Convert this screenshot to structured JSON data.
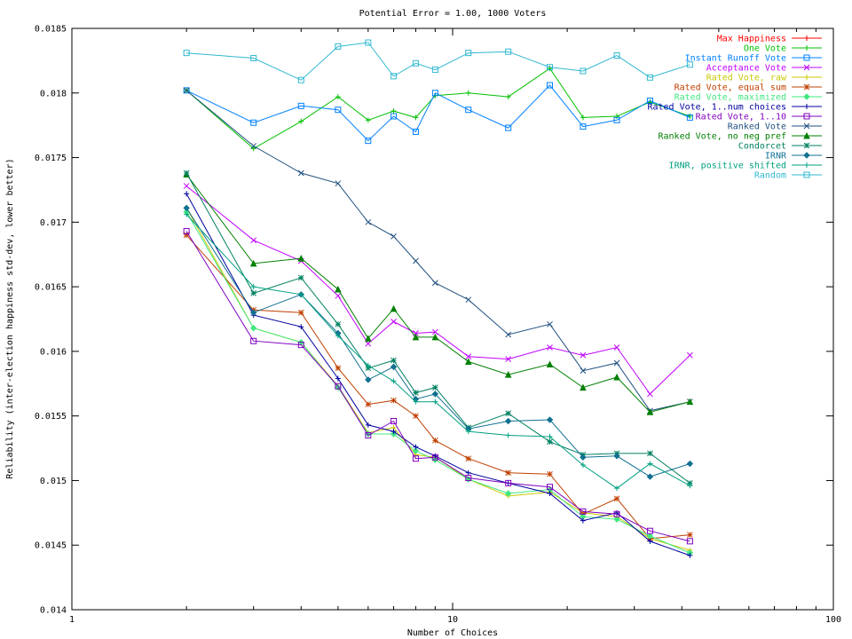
{
  "chart_data": {
    "type": "line",
    "title": "Potential Error = 1.00, 1000 Voters",
    "xlabel": "Number of Choices",
    "ylabel": "Reliability (inter-election happiness std-dev, lower better)",
    "xscale": "log",
    "xlim": [
      1,
      100
    ],
    "ylim": [
      0.014,
      0.0185
    ],
    "xticks": [
      {
        "value": 1,
        "label": "1"
      },
      {
        "value": 10,
        "label": "10"
      },
      {
        "value": 100,
        "label": "100"
      }
    ],
    "yticks": [
      {
        "value": 0.014,
        "label": "0.014"
      },
      {
        "value": 0.0145,
        "label": "0.0145"
      },
      {
        "value": 0.015,
        "label": "0.015"
      },
      {
        "value": 0.0155,
        "label": "0.0155"
      },
      {
        "value": 0.016,
        "label": "0.016"
      },
      {
        "value": 0.0165,
        "label": "0.0165"
      },
      {
        "value": 0.017,
        "label": "0.017"
      },
      {
        "value": 0.0175,
        "label": "0.0175"
      },
      {
        "value": 0.018,
        "label": "0.018"
      },
      {
        "value": 0.0185,
        "label": "0.0185"
      }
    ],
    "grid": false,
    "legend_position": "top-right",
    "x": [
      2,
      3,
      4,
      5,
      6,
      7,
      8,
      9,
      11,
      14,
      18,
      22,
      27,
      33,
      42
    ],
    "series": [
      {
        "name": "Max Happiness",
        "color": "#ff0000",
        "marker": "plus",
        "values": [
          null,
          null,
          null,
          null,
          null,
          null,
          null,
          null,
          null,
          null,
          null,
          null,
          null,
          null,
          null
        ]
      },
      {
        "name": "One Vote",
        "color": "#00c000",
        "marker": "plus",
        "values": [
          0.01802,
          0.01757,
          0.01778,
          0.01797,
          0.01779,
          0.01786,
          0.01781,
          0.01798,
          0.018,
          0.01797,
          0.01819,
          0.01781,
          0.01782,
          0.01793,
          0.01782
        ]
      },
      {
        "name": "Instant Runoff Vote",
        "color": "#0080ff",
        "marker": "square",
        "values": [
          0.01802,
          0.01777,
          0.0179,
          0.01787,
          0.01763,
          0.01782,
          0.0177,
          0.018,
          0.01787,
          0.01773,
          0.01806,
          0.01774,
          0.01779,
          0.01794,
          0.01781
        ]
      },
      {
        "name": "Acceptance Vote",
        "color": "#c000ff",
        "marker": "x",
        "values": [
          0.01728,
          0.01686,
          0.0167,
          0.01643,
          0.01606,
          0.01623,
          0.01614,
          0.01615,
          0.01596,
          0.01594,
          0.01603,
          0.01597,
          0.01603,
          0.01567,
          0.01597
        ]
      },
      {
        "name": "Rated Vote, raw",
        "color": "#c8c800",
        "marker": "plus",
        "values": [
          0.01711,
          0.01618,
          0.01607,
          0.01573,
          0.01537,
          0.01541,
          0.0152,
          0.01518,
          0.01501,
          0.01488,
          0.01491,
          0.01475,
          0.01472,
          0.01455,
          0.01446
        ]
      },
      {
        "name": "Rated Vote, equal sum",
        "color": "#c04000",
        "marker": "asterisk",
        "values": [
          0.0169,
          0.01632,
          0.0163,
          0.01587,
          0.01559,
          0.01562,
          0.0155,
          0.01531,
          0.01517,
          0.01506,
          0.01505,
          0.01474,
          0.01486,
          0.01455,
          0.01458
        ]
      },
      {
        "name": "Rated Vote, maximized",
        "color": "#40e880",
        "marker": "diamond",
        "values": [
          0.01708,
          0.01618,
          0.01607,
          0.01572,
          0.01536,
          0.01536,
          0.01523,
          0.01516,
          0.01501,
          0.0149,
          0.01493,
          0.01472,
          0.0147,
          0.01457,
          0.01444
        ]
      },
      {
        "name": "Rated Vote, 1..num choices",
        "color": "#0000a0",
        "marker": "plus",
        "values": [
          0.01722,
          0.01628,
          0.01619,
          0.01579,
          0.01543,
          0.01538,
          0.01526,
          0.01519,
          0.01506,
          0.01498,
          0.0149,
          0.01469,
          0.01475,
          0.01453,
          0.01442
        ]
      },
      {
        "name": "Rated Vote, 1..10",
        "color": "#8000c0",
        "marker": "square",
        "values": [
          0.01693,
          0.01608,
          0.01605,
          0.01573,
          0.01535,
          0.01546,
          0.01517,
          0.01518,
          0.01502,
          0.01498,
          0.01495,
          0.01476,
          0.01474,
          0.01461,
          0.01453
        ]
      },
      {
        "name": "Ranked Vote",
        "color": "#205080",
        "marker": "x",
        "values": [
          0.01802,
          0.01759,
          0.01738,
          0.0173,
          0.017,
          0.01689,
          0.0167,
          0.01653,
          0.0164,
          0.01613,
          0.01621,
          0.01585,
          0.01591,
          0.01554,
          0.01561
        ]
      },
      {
        "name": "Ranked Vote, no neg pref",
        "color": "#008000",
        "marker": "triangle",
        "values": [
          0.01737,
          0.01668,
          0.01672,
          0.01648,
          0.0161,
          0.01633,
          0.01611,
          0.01611,
          0.01592,
          0.01582,
          0.0159,
          0.01572,
          0.0158,
          0.01553,
          0.01561
        ]
      },
      {
        "name": "Condorcet",
        "color": "#008060",
        "marker": "asterisk",
        "values": [
          0.01738,
          0.01645,
          0.01657,
          0.01621,
          0.01587,
          0.01593,
          0.01568,
          0.01572,
          0.01541,
          0.01552,
          0.0153,
          0.0152,
          0.01521,
          0.01521,
          0.01498
        ]
      },
      {
        "name": "IRNR",
        "color": "#107090",
        "marker": "diamond",
        "values": [
          0.01711,
          0.0163,
          0.01644,
          0.01614,
          0.01578,
          0.01588,
          0.01563,
          0.01567,
          0.0154,
          0.01546,
          0.01547,
          0.01518,
          0.01519,
          0.01503,
          0.01513
        ]
      },
      {
        "name": "IRNR, positive shifted",
        "color": "#00a080",
        "marker": "plus",
        "values": [
          0.01706,
          0.0165,
          0.01644,
          0.01612,
          0.01589,
          0.01577,
          0.01561,
          0.01561,
          0.01538,
          0.01535,
          0.01534,
          0.01512,
          0.01494,
          0.01513,
          0.01496
        ]
      },
      {
        "name": "Random",
        "color": "#30b8d0",
        "marker": "square",
        "values": [
          0.01831,
          0.01827,
          0.0181,
          0.01836,
          0.01839,
          0.01813,
          0.01823,
          0.01818,
          0.01831,
          0.01832,
          0.0182,
          0.01817,
          0.01829,
          0.01812,
          0.01822
        ]
      }
    ]
  }
}
